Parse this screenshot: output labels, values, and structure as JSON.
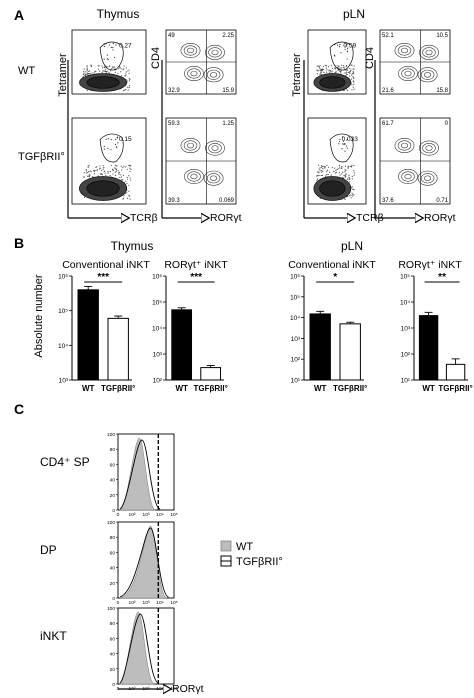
{
  "panel_a": {
    "letter": "A",
    "thymus_title": "Thymus",
    "pln_title": "pLN",
    "row_labels": [
      "WT",
      "TGFβRII°"
    ],
    "x_axis_left": "TCRβ",
    "x_axis_right": "RORγt",
    "y_axis_left": "Tetramer",
    "y_axis_right": "CD4",
    "gates": {
      "thymus_wt": "0.27",
      "thymus_ko": "0.15",
      "pln_wt": "0.59",
      "pln_ko": "0.033"
    },
    "quadrants": {
      "thymus_wt": [
        "49",
        "2.25",
        "32.9",
        "15.9"
      ],
      "thymus_ko": [
        "59.3",
        "1.25",
        "39.3",
        "0.069"
      ],
      "pln_wt": [
        "52.1",
        "10.5",
        "21.6",
        "15.8"
      ],
      "pln_ko": [
        "61.7",
        "0",
        "37.6",
        "0.71"
      ]
    }
  },
  "panel_b": {
    "letter": "B",
    "thymus_title": "Thymus",
    "pln_title": "pLN",
    "y_axis_label": "Absolute number",
    "x_categories": [
      "WT",
      "TGFβRII°"
    ],
    "chart_data": [
      {
        "type": "bar",
        "title": "Conventional iNKT",
        "tissue": "Thymus",
        "categories": [
          "WT",
          "TGFβRII°"
        ],
        "values": [
          400000,
          60000
        ],
        "errors": [
          100000,
          10000
        ],
        "yscale": "log",
        "ylim": [
          1000,
          1000000
        ],
        "ytick_labels": [
          "10³",
          "10⁴",
          "10⁵",
          "10⁶"
        ],
        "significance": "***"
      },
      {
        "type": "bar",
        "title": "RORγt⁺ iNKT",
        "tissue": "Thymus",
        "categories": [
          "WT",
          "TGFβRII°"
        ],
        "values": [
          50000,
          300
        ],
        "errors": [
          10000,
          60
        ],
        "yscale": "log",
        "ylim": [
          100,
          1000000
        ],
        "ytick_labels": [
          "10²",
          "10³",
          "10⁴",
          "10⁵",
          "10⁶"
        ],
        "significance": "***"
      },
      {
        "type": "bar",
        "title": "Conventional iNKT",
        "tissue": "pLN",
        "categories": [
          "WT",
          "TGFβRII°"
        ],
        "values": [
          15000,
          5000
        ],
        "errors": [
          5000,
          1000
        ],
        "yscale": "log",
        "ylim": [
          10,
          1000000
        ],
        "ytick_labels": [
          "10¹",
          "10²",
          "10³",
          "10⁴",
          "10⁵",
          "10⁶"
        ],
        "significance": "*"
      },
      {
        "type": "bar",
        "title": "RORγt⁺ iNKT",
        "tissue": "pLN",
        "categories": [
          "WT",
          "TGFβRII°"
        ],
        "values": [
          3000,
          40
        ],
        "errors": [
          1000,
          25
        ],
        "yscale": "log",
        "ylim": [
          10,
          100000
        ],
        "ytick_labels": [
          "10¹",
          "10²",
          "10³",
          "10⁴",
          "10⁵"
        ],
        "significance": "**"
      }
    ]
  },
  "panel_c": {
    "letter": "C",
    "rows": [
      "CD4⁺ SP",
      "DP",
      "iNKT"
    ],
    "x_axis_label": "RORγt",
    "x_ticks": [
      "0",
      "10²",
      "10³",
      "10⁴",
      "10⁵"
    ],
    "y_ticks": [
      "100",
      "80",
      "60",
      "40",
      "20",
      "0"
    ],
    "legend": [
      "WT",
      "TGFβRII°"
    ]
  },
  "colors": {
    "fill_wt": "#000000",
    "fill_ko": "#ffffff",
    "hist_wt": "#bdbdbd"
  }
}
